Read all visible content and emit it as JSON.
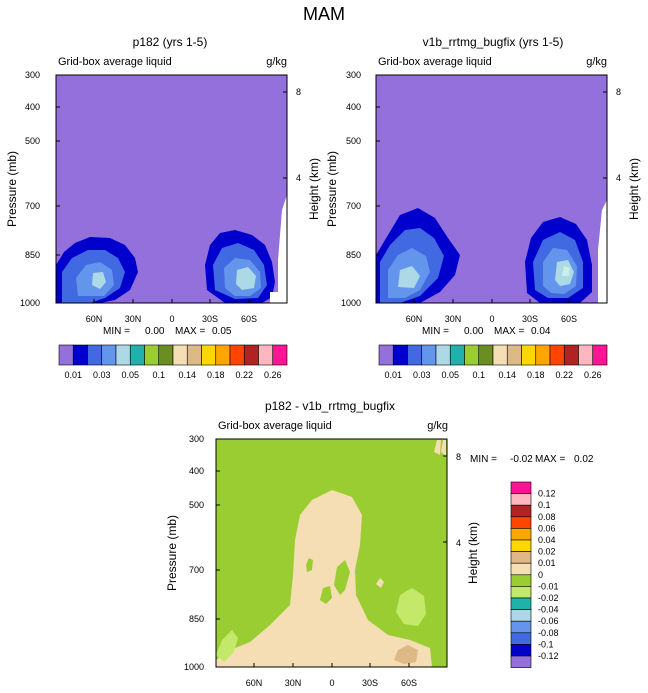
{
  "figure_title": "MAM",
  "chart_data": [
    {
      "type": "heatmap",
      "title": "p182 (yrs 1-5)",
      "subtitle_left": "Grid-box average liquid",
      "subtitle_right": "g/kg",
      "ylabel": "Pressure (mb)",
      "y2label": "Height (km)",
      "x_ticks": [
        "60N",
        "30N",
        "0",
        "30S",
        "60S"
      ],
      "y_ticks": [
        "300",
        "400",
        "500",
        "700",
        "850",
        "1000"
      ],
      "y2_ticks": [
        "8",
        "4"
      ],
      "min_label": "MIN =",
      "min": "0.00",
      "max_label": "MAX =",
      "max": "0.05"
    },
    {
      "type": "heatmap",
      "title": "v1b_rrtmg_bugfix (yrs 1-5)",
      "subtitle_left": "Grid-box average liquid",
      "subtitle_right": "g/kg",
      "ylabel": "Pressure (mb)",
      "y2label": "Height (km)",
      "x_ticks": [
        "60N",
        "30N",
        "0",
        "30S",
        "60S"
      ],
      "y_ticks": [
        "300",
        "400",
        "500",
        "700",
        "850",
        "1000"
      ],
      "y2_ticks": [
        "8",
        "4"
      ],
      "min_label": "MIN =",
      "min": "0.00",
      "max_label": "MAX =",
      "max": "0.04"
    },
    {
      "type": "heatmap",
      "title": "p182 - v1b_rrtmg_bugfix",
      "subtitle_left": "Grid-box average liquid",
      "subtitle_right": "g/kg",
      "ylabel": "Pressure (mb)",
      "y2label": "Height (km)",
      "x_ticks": [
        "60N",
        "30N",
        "0",
        "30S",
        "60S"
      ],
      "y_ticks": [
        "300",
        "400",
        "500",
        "700",
        "850",
        "1000"
      ],
      "y2_ticks": [
        "8",
        "4"
      ],
      "min_label": "MIN =",
      "min": "-0.02",
      "max_label": "MAX =",
      "max": "0.02"
    }
  ],
  "colorbar_top": {
    "colors": [
      "#9370db",
      "#0000cd",
      "#4169e1",
      "#6495ed",
      "#add8e6",
      "#20b2aa",
      "#9acd32",
      "#6b8e23",
      "#f5deb3",
      "#deb887",
      "#ffd700",
      "#ffa500",
      "#ff4500",
      "#b22222",
      "#ffb6c1",
      "#ff1493"
    ],
    "labels": [
      "0.01",
      "0.03",
      "0.05",
      "0.1",
      "0.14",
      "0.18",
      "0.22",
      "0.26"
    ]
  },
  "colorbar_diff": {
    "colors": [
      "#ff1493",
      "#ffb6c1",
      "#b22222",
      "#ff4500",
      "#ffa500",
      "#ffd700",
      "#deb887",
      "#f5deb3",
      "#9acd32",
      "#c4e86a",
      "#20b2aa",
      "#add8e6",
      "#6495ed",
      "#4169e1",
      "#0000cd",
      "#9370db"
    ],
    "labels": [
      "0.12",
      "0.1",
      "0.08",
      "0.06",
      "0.04",
      "0.02",
      "0.01",
      "0",
      "-0.01",
      "-0.02",
      "-0.04",
      "-0.06",
      "-0.08",
      "-0.1",
      "-0.12"
    ]
  }
}
